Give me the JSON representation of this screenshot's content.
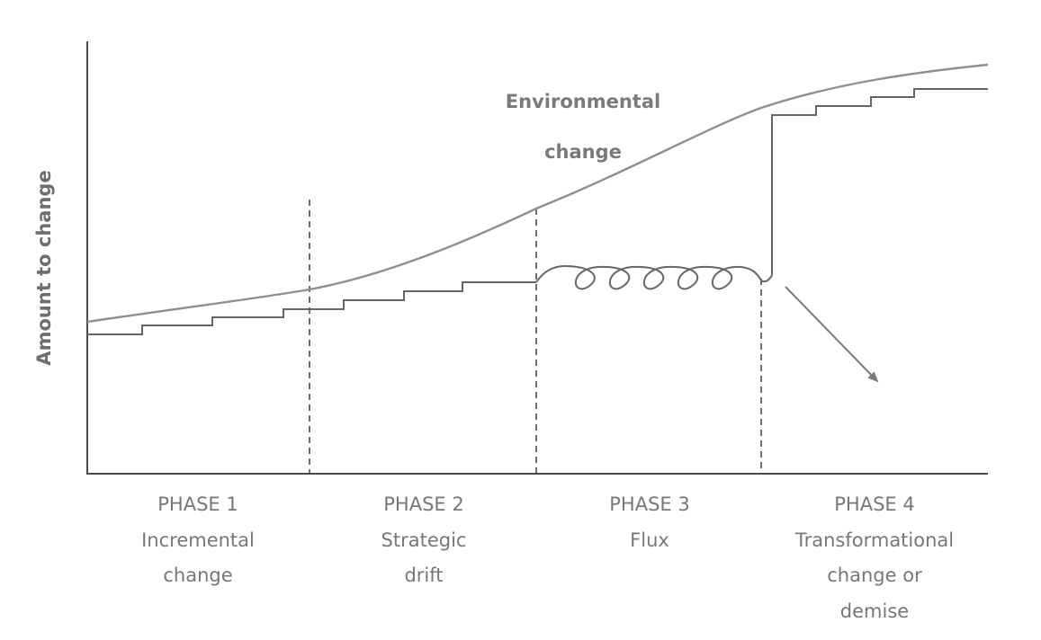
{
  "y_axis_label": "Amount to change",
  "curve_label": {
    "line1": "Environmental",
    "line2": "change"
  },
  "phases": [
    {
      "title": "PHASE 1",
      "lines": [
        "Incremental",
        "change"
      ]
    },
    {
      "title": "PHASE 2",
      "lines": [
        "Strategic",
        "drift"
      ]
    },
    {
      "title": "PHASE 3",
      "lines": [
        "Flux"
      ]
    },
    {
      "title": "PHASE 4",
      "lines": [
        "Transformational",
        "change or",
        "demise"
      ]
    }
  ],
  "colors": {
    "axis": "#4a4a4a",
    "environmental_curve": "#8f8f8f",
    "strategic_line": "#666666",
    "text": "#777777"
  }
}
